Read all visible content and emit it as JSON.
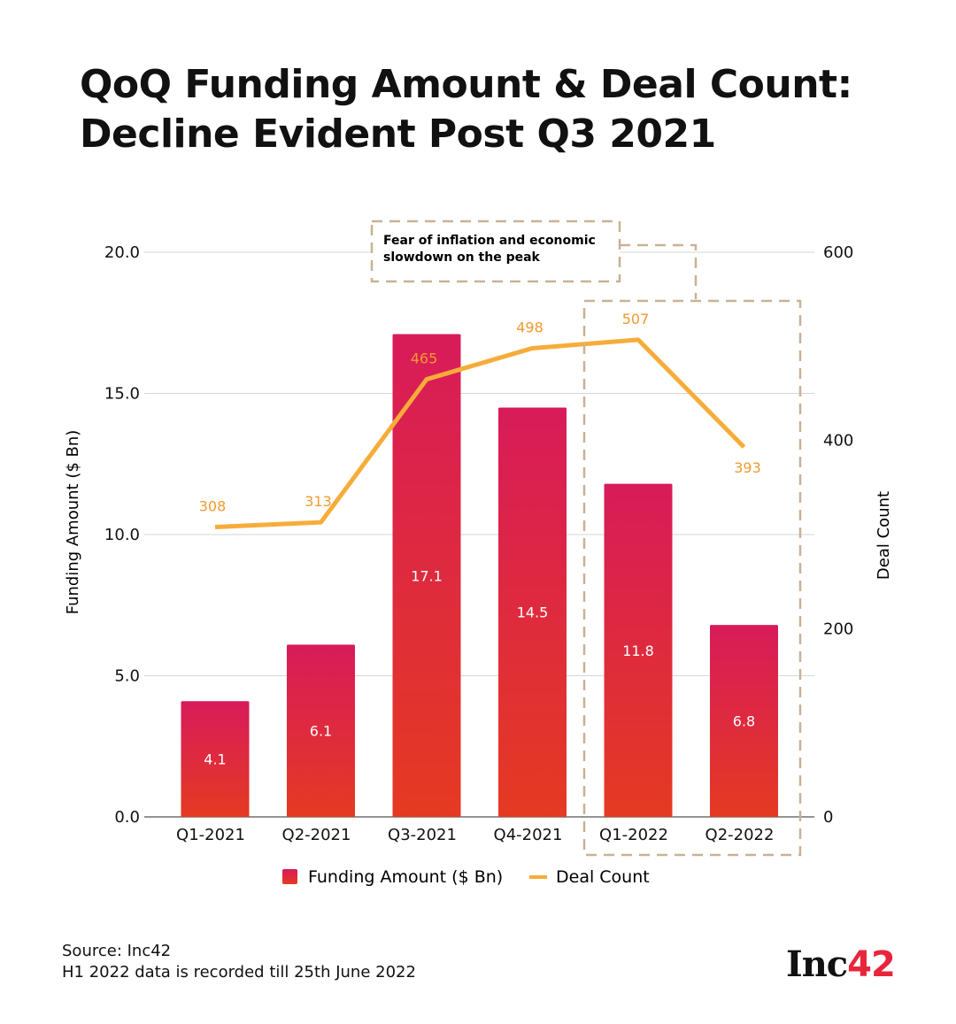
{
  "chart_data": {
    "type": "bar+line",
    "title": "QoQ Funding Amount & Deal Count: Decline Evident Post Q3 2021",
    "categories": [
      "Q1-2021",
      "Q2-2021",
      "Q3-2021",
      "Q4-2021",
      "Q1-2022",
      "Q2-2022"
    ],
    "series": [
      {
        "name": "Funding Amount ($ Bn)",
        "type": "bar",
        "axis": "left",
        "values": [
          4.1,
          6.1,
          17.1,
          14.5,
          11.8,
          6.8
        ],
        "color_top": "#d81b5a",
        "color_bottom": "#e53a22"
      },
      {
        "name": "Deal Count",
        "type": "line",
        "axis": "right",
        "values": [
          308,
          313,
          465,
          498,
          507,
          393
        ],
        "color": "#f7ac3a"
      }
    ],
    "ylabel_left": "Funding Amount ($ Bn)",
    "ylabel_right": "Deal Count",
    "ylim_left": [
      0,
      20
    ],
    "ylim_right": [
      0,
      600
    ],
    "yticks_left": [
      "0.0",
      "5.0",
      "10.0",
      "15.0",
      "20.0"
    ],
    "yticks_right": [
      "0",
      "200",
      "400",
      "600"
    ],
    "grid": true,
    "legend": "bottom",
    "annotation": {
      "text_line1": "Fear of inflation and economic",
      "text_line2": "slowdown on the peak",
      "highlight": [
        "Q1-2022",
        "Q2-2022"
      ]
    }
  },
  "footer": {
    "source": "Source: Inc42",
    "note": "H1 2022 data is recorded till 25th June 2022"
  },
  "logo": {
    "text": "Inc",
    "number": "42"
  }
}
